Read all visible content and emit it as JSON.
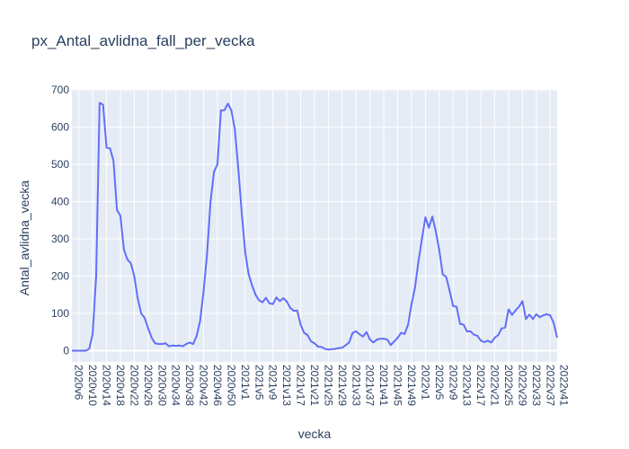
{
  "chart_data": {
    "type": "line",
    "title": "px_Antal_avlidna_fall_per_vecka",
    "xlabel": "vecka",
    "ylabel": "Antal_avlidna_vecka",
    "ylim": [
      -30,
      700
    ],
    "yticks": [
      0,
      100,
      200,
      300,
      400,
      500,
      600,
      700
    ],
    "x_tick_labels": [
      "2020v6",
      "2020v10",
      "2020v14",
      "2020v18",
      "2020v22",
      "2020v26",
      "2020v30",
      "2020v34",
      "2020v38",
      "2020v42",
      "2020v46",
      "2020v50",
      "2021v1",
      "2021v5",
      "2021v9",
      "2021v13",
      "2021v17",
      "2021v21",
      "2021v25",
      "2021v29",
      "2021v33",
      "2021v37",
      "2021v41",
      "2021v45",
      "2021v49",
      "2022v1",
      "2022v5",
      "2022v9",
      "2022v13",
      "2022v17",
      "2022v21",
      "2022v25",
      "2022v29",
      "2022v33",
      "2022v37",
      "2022v41"
    ],
    "grid": true,
    "legend": "none",
    "colors": {
      "line": "#636efa",
      "plot_bg": "#e5ecf6",
      "grid": "#ffffff",
      "text": "#2a3f5f"
    },
    "series": [
      {
        "values": [
          0,
          0,
          0,
          0,
          0,
          5,
          45,
          200,
          665,
          660,
          545,
          543,
          510,
          378,
          362,
          272,
          245,
          235,
          200,
          140,
          100,
          88,
          60,
          35,
          20,
          18,
          18,
          20,
          12,
          14,
          13,
          14,
          12,
          18,
          22,
          18,
          40,
          80,
          160,
          260,
          400,
          480,
          500,
          645,
          645,
          663,
          645,
          595,
          490,
          370,
          265,
          205,
          175,
          150,
          135,
          130,
          142,
          127,
          125,
          143,
          133,
          141,
          132,
          115,
          107,
          108,
          70,
          48,
          42,
          25,
          20,
          11,
          10,
          5,
          3,
          4,
          5,
          7,
          8,
          15,
          22,
          48,
          52,
          44,
          38,
          50,
          30,
          22,
          30,
          32,
          32,
          30,
          15,
          25,
          35,
          48,
          45,
          70,
          125,
          170,
          240,
          300,
          358,
          330,
          360,
          320,
          270,
          205,
          198,
          160,
          120,
          118,
          72,
          70,
          52,
          52,
          43,
          40,
          27,
          23,
          27,
          22,
          35,
          42,
          60,
          62,
          111,
          96,
          108,
          118,
          133,
          85,
          97,
          85,
          98,
          90,
          95,
          98,
          95,
          75,
          35
        ]
      }
    ]
  }
}
